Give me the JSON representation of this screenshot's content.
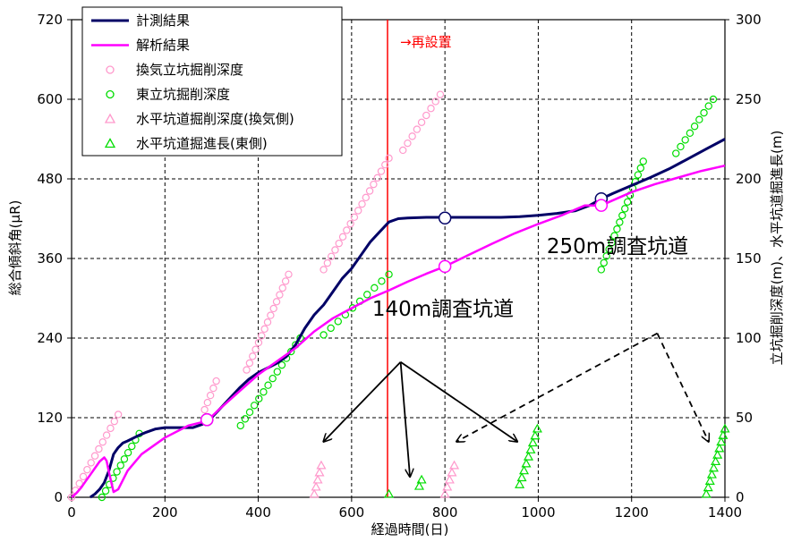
{
  "chart_data": {
    "type": "line",
    "xlabel": "経過時間(日)",
    "ylabel": "総合傾斜角(μR)",
    "y2label": "立坑掘削深度(m)、水平坑道掘進長(m)",
    "xlim": [
      0,
      1400
    ],
    "ylim": [
      0,
      720
    ],
    "y2lim": [
      0,
      300
    ],
    "xticks": [
      "0",
      "200",
      "400",
      "600",
      "800",
      "1000",
      "1200",
      "1400"
    ],
    "yticks": [
      "0",
      "120",
      "240",
      "360",
      "480",
      "600",
      "720"
    ],
    "y2ticks": [
      "0",
      "50",
      "100",
      "150",
      "200",
      "250",
      "300"
    ],
    "grid": true,
    "legend_position": "top-left",
    "vline": {
      "x": 677,
      "label": "→再設置",
      "color": "#ff0000"
    },
    "annotations": [
      {
        "text": "140m調査坑道",
        "style": "solid",
        "origin": [
          705,
          85
        ],
        "targets": [
          [
            540,
            35
          ],
          [
            725,
            13
          ],
          [
            955,
            35
          ]
        ]
      },
      {
        "text": "250m調査坑道",
        "style": "dashed",
        "origin": [
          1255,
          103
        ],
        "targets": [
          [
            825,
            35
          ],
          [
            1365,
            35
          ]
        ]
      }
    ],
    "series": [
      {
        "name": "計測結果",
        "axis": "left",
        "kind": "line",
        "color": "#000066",
        "x": [
          40,
          50,
          60,
          70,
          80,
          90,
          100,
          110,
          120,
          140,
          160,
          180,
          200,
          220,
          240,
          260,
          280,
          300,
          320,
          340,
          360,
          380,
          400,
          420,
          440,
          460,
          480,
          500,
          520,
          540,
          560,
          580,
          600,
          620,
          640,
          660,
          680,
          700,
          720,
          760,
          800,
          840,
          880,
          920,
          960,
          1000,
          1040,
          1080,
          1110,
          1135,
          1160,
          1200,
          1240,
          1280,
          1320,
          1360,
          1400
        ],
        "y": [
          0,
          5,
          12,
          22,
          40,
          65,
          75,
          82,
          85,
          92,
          98,
          103,
          105,
          105,
          105,
          105,
          110,
          120,
          135,
          150,
          165,
          178,
          188,
          195,
          202,
          212,
          230,
          255,
          275,
          290,
          310,
          330,
          345,
          365,
          385,
          400,
          415,
          420,
          421,
          422,
          422,
          422,
          422,
          422,
          423,
          425,
          428,
          432,
          440,
          450,
          458,
          470,
          482,
          495,
          510,
          525,
          540
        ],
        "markers": [
          [
            290,
            117
          ],
          [
            800,
            421
          ],
          [
            1135,
            450
          ]
        ]
      },
      {
        "name": "解析結果",
        "axis": "left",
        "kind": "line",
        "color": "#ff00ff",
        "x": [
          0,
          10,
          20,
          30,
          40,
          50,
          60,
          70,
          75,
          80,
          90,
          100,
          120,
          150,
          200,
          250,
          290,
          320,
          360,
          400,
          440,
          480,
          520,
          560,
          600,
          640,
          680,
          720,
          760,
          800,
          850,
          900,
          950,
          1000,
          1050,
          1100,
          1135,
          1200,
          1250,
          1300,
          1350,
          1400
        ],
        "y": [
          0,
          6,
          14,
          24,
          34,
          44,
          54,
          60,
          55,
          38,
          8,
          12,
          40,
          65,
          90,
          108,
          115,
          135,
          160,
          185,
          205,
          225,
          250,
          270,
          285,
          300,
          312,
          325,
          337,
          348,
          365,
          382,
          398,
          412,
          425,
          440,
          440,
          460,
          472,
          482,
          492,
          500
        ],
        "markers": [
          [
            290,
            117
          ],
          [
            800,
            348
          ],
          [
            1135,
            440
          ]
        ]
      },
      {
        "name": "換気立坑掘削深度",
        "axis": "right",
        "kind": "scatter",
        "marker": "circle",
        "color": "#ff99cc",
        "groups": [
          {
            "x0": 0,
            "x1": 100,
            "y0": 0,
            "y1": 52
          },
          {
            "x0": 285,
            "x1": 310,
            "y0": 55,
            "y1": 73
          },
          {
            "x0": 375,
            "x1": 465,
            "y0": 80,
            "y1": 140
          },
          {
            "x0": 540,
            "x1": 680,
            "y0": 143,
            "y1": 213
          },
          {
            "x0": 710,
            "x1": 790,
            "y0": 218,
            "y1": 253
          }
        ]
      },
      {
        "name": "東立坑掘削深度",
        "axis": "right",
        "kind": "scatter",
        "marker": "circle",
        "color": "#00dd00",
        "groups": [
          {
            "x0": 65,
            "x1": 145,
            "y0": 0,
            "y1": 40
          },
          {
            "x0": 362,
            "x1": 490,
            "y0": 45,
            "y1": 100
          },
          {
            "x0": 540,
            "x1": 680,
            "y0": 102,
            "y1": 140
          },
          {
            "x0": 1135,
            "x1": 1225,
            "y0": 143,
            "y1": 211
          },
          {
            "x0": 1295,
            "x1": 1375,
            "y0": 216,
            "y1": 250
          }
        ]
      },
      {
        "name": "水平坑道掘削深度(換気側)",
        "axis": "right",
        "kind": "scatter",
        "marker": "triangle",
        "color": "#ff99cc",
        "groups": [
          {
            "x0": 520,
            "x1": 535,
            "y0": 2,
            "y1": 20
          },
          {
            "x0": 800,
            "x1": 820,
            "y0": 2,
            "y1": 20
          }
        ]
      },
      {
        "name": "水平坑道掘進長(東側)",
        "axis": "right",
        "kind": "scatter",
        "marker": "triangle",
        "color": "#00dd00",
        "groups": [
          {
            "x0": 680,
            "x1": 680,
            "y0": 2,
            "y1": 2
          },
          {
            "x0": 745,
            "x1": 750,
            "y0": 7,
            "y1": 11
          },
          {
            "x0": 960,
            "x1": 998,
            "y0": 8,
            "y1": 43
          },
          {
            "x0": 1360,
            "x1": 1400,
            "y0": 2,
            "y1": 43
          }
        ]
      }
    ]
  }
}
